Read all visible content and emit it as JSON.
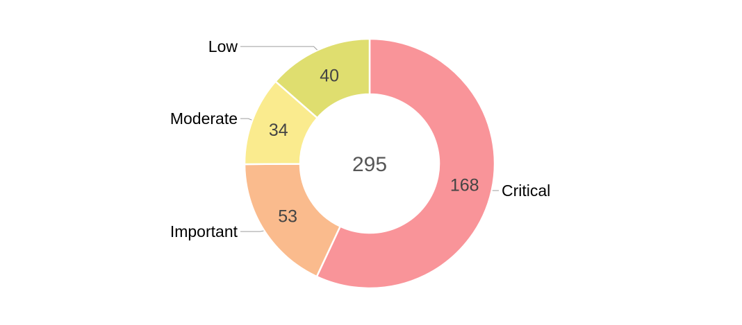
{
  "chart_data": {
    "type": "pie",
    "subtype": "donut",
    "title": "",
    "center_label": "295",
    "total": 295,
    "categories": [
      "Critical",
      "Important",
      "Moderate",
      "Low"
    ],
    "values": [
      168,
      53,
      34,
      40
    ],
    "slice_value_labels": [
      "168",
      "53",
      "34",
      "40"
    ],
    "colors": [
      "#F99499",
      "#FABB8D",
      "#FAEB8E",
      "#DFDE6F"
    ],
    "start_angle_deg": 0,
    "direction": "clockwise",
    "donut_hole_ratio": 0.56,
    "legend_position": "outside-labels-with-leader-lines",
    "background": "#FFFFFF",
    "text_colors": {
      "category_label": "#000000",
      "value_label": "#444444",
      "center_label": "#565656",
      "leader_line": "#9E9E9E"
    }
  }
}
